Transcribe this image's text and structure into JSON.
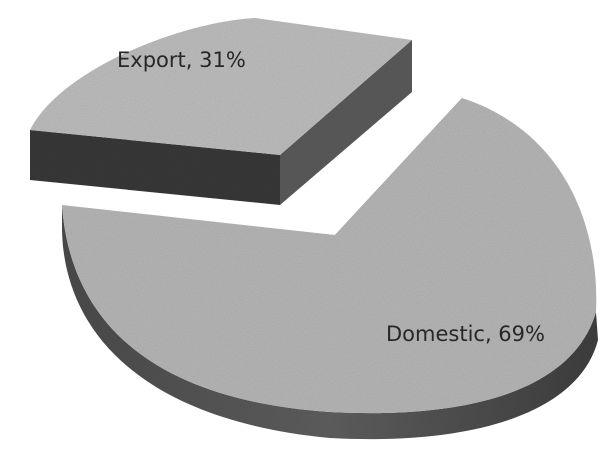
{
  "chart_data": {
    "type": "pie",
    "title": "",
    "three_d": true,
    "exploded": "Export",
    "slices": [
      {
        "name": "Domestic",
        "value": 69,
        "label": "Domestic, 69%",
        "color": "#b5b5b5"
      },
      {
        "name": "Export",
        "value": 31,
        "label": "Export, 31%",
        "color": "#bcbcbc"
      }
    ]
  }
}
